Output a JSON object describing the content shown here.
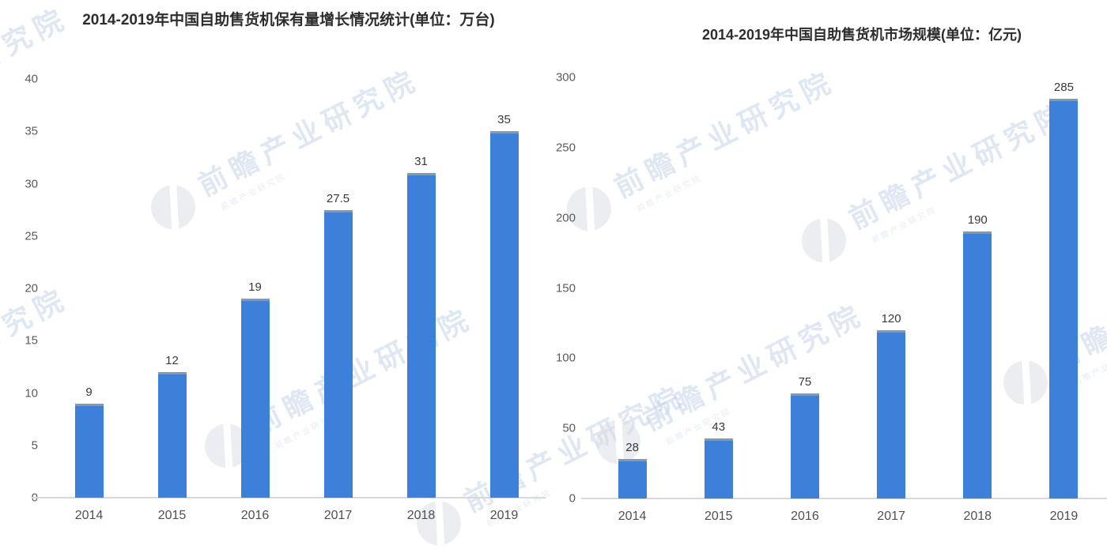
{
  "watermark": {
    "text": "前瞻产业研究院",
    "logo_icon": "qianzhan-circle-logo"
  },
  "colors": {
    "bar": "#3c80da",
    "bar_cap": "#8a98a6",
    "baseline": "#d8d8d8",
    "watermark_text": "#c0d0e6",
    "watermark_logo": "#d9dde3",
    "title": "#2d2d2d",
    "tick": "#5a5a5a"
  },
  "chart_data": [
    {
      "type": "bar",
      "title": "2014-2019年中国自助售货机保有量增长情况统计(单位：万台)",
      "categories": [
        "2014",
        "2015",
        "2016",
        "2017",
        "2018",
        "2019"
      ],
      "values": [
        9,
        12,
        19,
        27.5,
        31,
        35
      ],
      "labels": [
        "9",
        "12",
        "19",
        "27.5",
        "31",
        "35"
      ],
      "unit": "万台",
      "xlabel": "",
      "ylabel": "",
      "ylim": [
        0,
        40
      ],
      "yticks": [
        0,
        5,
        10,
        15,
        20,
        25,
        30,
        35,
        40
      ],
      "grid": false,
      "legend": null
    },
    {
      "type": "bar",
      "title": "2014-2019年中国自助售货机市场规模(单位：亿元)",
      "categories": [
        "2014",
        "2015",
        "2016",
        "2017",
        "2018",
        "2019"
      ],
      "values": [
        28,
        43,
        75,
        120,
        190,
        285
      ],
      "labels": [
        "28",
        "43",
        "75",
        "120",
        "190",
        "285"
      ],
      "unit": "亿元",
      "xlabel": "",
      "ylabel": "",
      "ylim": [
        0,
        300
      ],
      "yticks": [
        0,
        50,
        100,
        150,
        200,
        250,
        300
      ],
      "grid": false,
      "legend": null
    }
  ]
}
